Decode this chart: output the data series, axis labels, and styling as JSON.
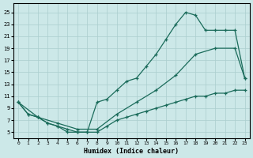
{
  "bg_color": "#cce8e8",
  "grid_color": "#aacece",
  "line_color": "#1a6b5a",
  "xlabel": "Humidex (Indice chaleur)",
  "xlim": [
    -0.5,
    23.5
  ],
  "ylim": [
    4,
    26.5
  ],
  "xticks": [
    0,
    1,
    2,
    3,
    4,
    5,
    6,
    7,
    8,
    9,
    10,
    11,
    12,
    13,
    14,
    15,
    16,
    17,
    18,
    19,
    20,
    21,
    22,
    23
  ],
  "yticks": [
    5,
    7,
    9,
    11,
    13,
    15,
    17,
    19,
    21,
    23,
    25
  ],
  "line_top_x": [
    0,
    1,
    2,
    3,
    4,
    5,
    6,
    7,
    8,
    9,
    10,
    11,
    12,
    13,
    14,
    15,
    16,
    17,
    18,
    19,
    20,
    21,
    22,
    23
  ],
  "line_top_y": [
    10,
    8,
    7.5,
    6.5,
    6,
    5.5,
    5,
    5,
    10,
    10.5,
    12,
    13.5,
    14,
    16,
    18,
    20.5,
    23,
    25,
    24.5,
    22,
    22,
    22,
    22,
    14
  ],
  "line_mid_x": [
    0,
    2,
    4,
    6,
    8,
    10,
    12,
    14,
    16,
    18,
    20,
    22,
    23
  ],
  "line_mid_y": [
    10,
    7.5,
    6.5,
    5.5,
    5.5,
    8,
    10,
    12,
    14.5,
    18,
    19,
    19,
    14
  ],
  "line_bot_x": [
    0,
    1,
    2,
    3,
    4,
    5,
    6,
    7,
    8,
    9,
    10,
    11,
    12,
    13,
    14,
    15,
    16,
    17,
    18,
    19,
    20,
    21,
    22,
    23
  ],
  "line_bot_y": [
    10,
    8,
    7.5,
    6.5,
    6,
    5,
    5,
    5,
    5,
    6,
    7,
    7.5,
    8,
    8.5,
    9,
    9.5,
    10,
    10.5,
    11,
    11,
    11.5,
    11.5,
    12,
    12
  ]
}
